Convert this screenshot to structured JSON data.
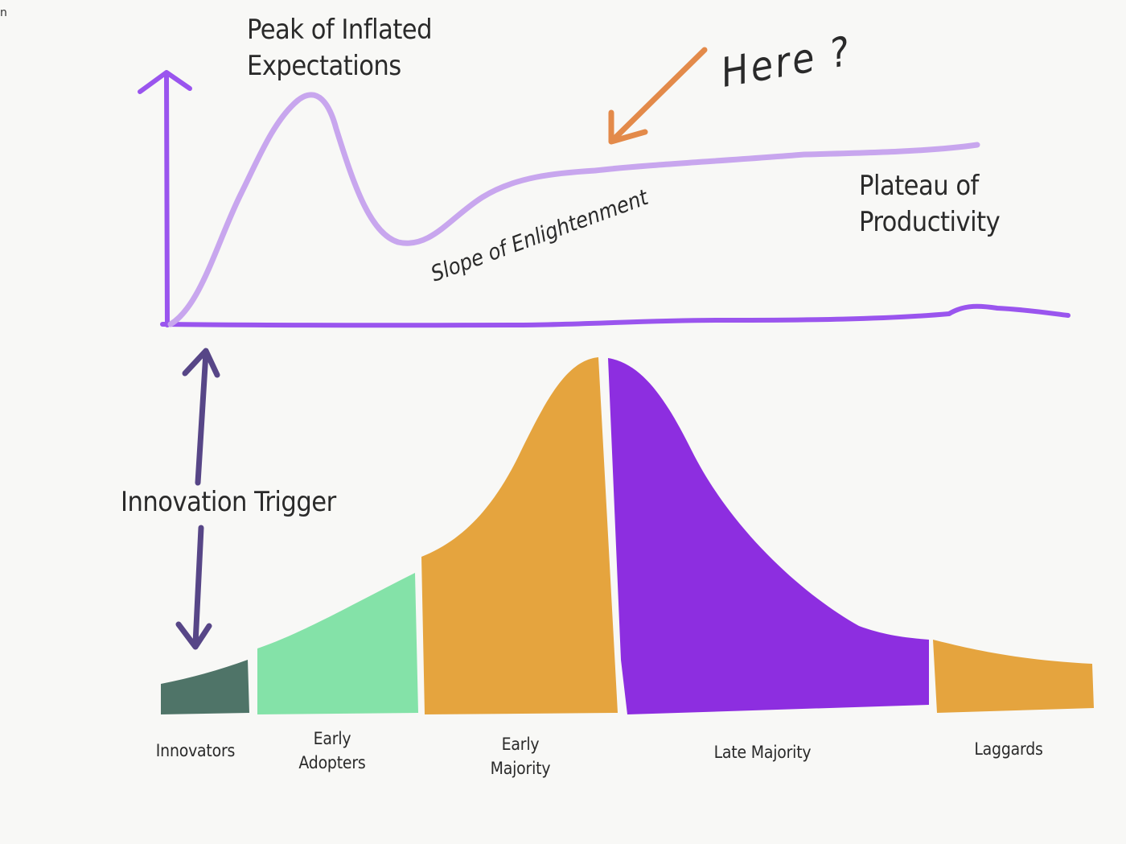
{
  "corner_mark": "n",
  "hype_cycle": {
    "peak_label_line1": "Peak of Inflated",
    "peak_label_line2": "Expectations",
    "slope_label": "Slope of Enlightenment",
    "plateau_label_line1": "Plateau of",
    "plateau_label_line2": "Productivity",
    "here_label": "Here ?"
  },
  "trigger_label": "Innovation Trigger",
  "adoption_categories": [
    {
      "line1": "Innovators",
      "line2": ""
    },
    {
      "line1": "Early",
      "line2": "Adopters"
    },
    {
      "line1": "Early",
      "line2": "Majority"
    },
    {
      "line1": "Late Majority",
      "line2": ""
    },
    {
      "line1": "Laggards",
      "line2": ""
    }
  ],
  "colors": {
    "axis": "#9a55ee",
    "hype_curve": "#c8a6ee",
    "innovators": "#4f7468",
    "early_adopters": "#84e2a8",
    "early_majority": "#e5a43e",
    "late_majority": "#8d2ee0",
    "laggards": "#e5a43e",
    "trigger_arrow": "#574687",
    "here_arrow": "#e38a4a"
  }
}
